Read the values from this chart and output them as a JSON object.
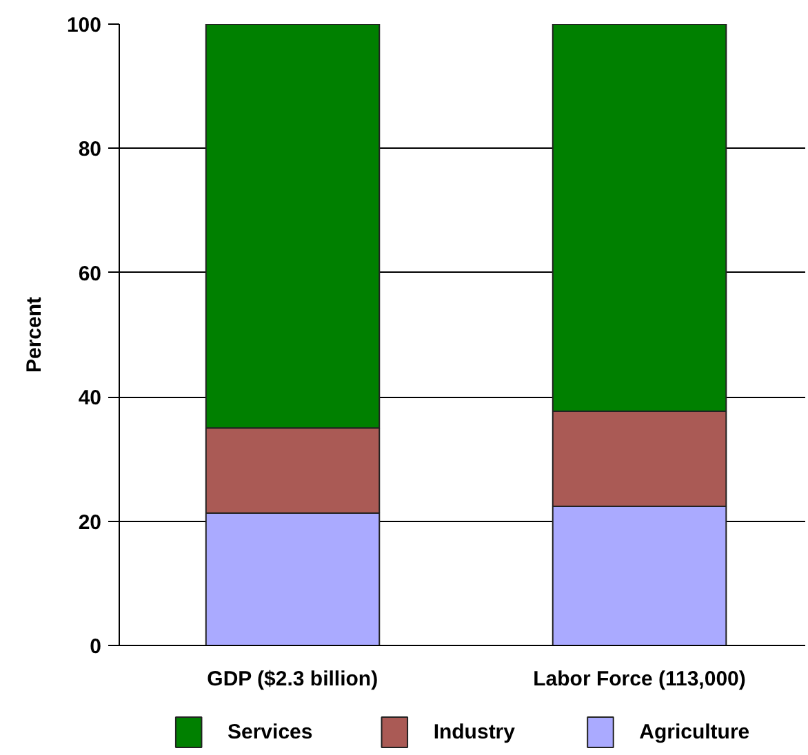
{
  "chart_data": {
    "type": "bar",
    "stacked": true,
    "ylabel": "Percent",
    "categories": [
      "GDP ($2.3 billion)",
      "Labor Force (113,000)"
    ],
    "series": [
      {
        "name": "Agriculture",
        "color": "#aaaaff",
        "values": [
          21.3,
          22.4
        ]
      },
      {
        "name": "Industry",
        "color": "#aa5a55",
        "values": [
          13.7,
          15.3
        ]
      },
      {
        "name": "Services",
        "color": "#008000",
        "values": [
          65.0,
          62.3
        ]
      }
    ],
    "ylim": [
      0,
      100
    ],
    "yticks": [
      0,
      20,
      40,
      60,
      80,
      100
    ],
    "grid": "y",
    "legend": "bottom"
  }
}
